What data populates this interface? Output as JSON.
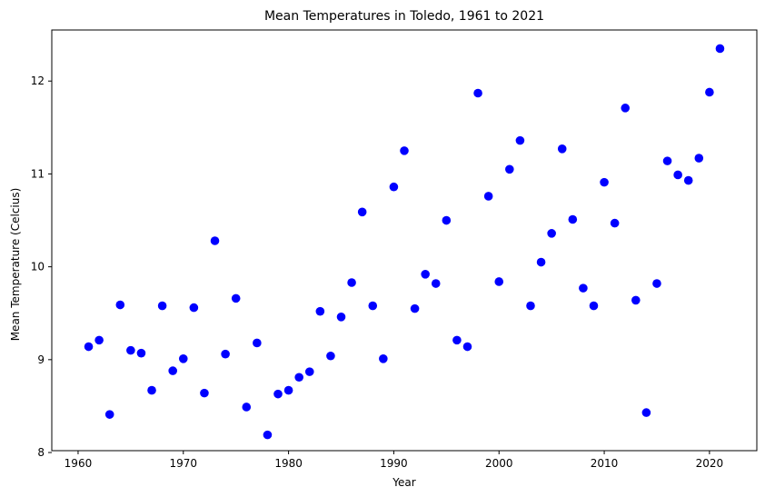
{
  "chart_data": {
    "type": "scatter",
    "title": "Mean Temperatures in Toledo, 1961 to 2021",
    "xlabel": "Year",
    "ylabel": "Mean Temperature (Celcius)",
    "xlim": [
      1957.5,
      2024.5
    ],
    "ylim": [
      8.02,
      12.55
    ],
    "xticks": [
      1960,
      1970,
      1980,
      1990,
      2000,
      2010,
      2020
    ],
    "yticks": [
      8,
      9,
      10,
      11,
      12
    ],
    "grid": false,
    "marker_color": "#0000ff",
    "series": [
      {
        "x": [
          1961,
          1962,
          1963,
          1964,
          1965,
          1966,
          1967,
          1968,
          1969,
          1970,
          1971,
          1972,
          1973,
          1974,
          1975,
          1976,
          1977,
          1978,
          1979,
          1980,
          1981,
          1982,
          1983,
          1984,
          1985,
          1986,
          1987,
          1988,
          1989,
          1990,
          1991,
          1992,
          1993,
          1994,
          1995,
          1996,
          1997,
          1998,
          1999,
          2000,
          2001,
          2002,
          2003,
          2004,
          2005,
          2006,
          2007,
          2008,
          2009,
          2010,
          2011,
          2012,
          2013,
          2014,
          2015,
          2016,
          2017,
          2018,
          2019,
          2020,
          2021
        ],
        "y": [
          9.14,
          9.21,
          8.41,
          9.59,
          9.1,
          9.07,
          8.67,
          9.58,
          8.88,
          9.01,
          9.56,
          8.64,
          10.28,
          9.06,
          9.66,
          8.49,
          9.18,
          8.19,
          8.63,
          8.67,
          8.81,
          8.87,
          9.52,
          9.04,
          9.46,
          9.83,
          10.59,
          9.58,
          9.01,
          10.86,
          11.25,
          9.55,
          9.92,
          9.82,
          10.5,
          9.21,
          9.14,
          11.87,
          10.76,
          9.84,
          11.05,
          11.36,
          9.58,
          10.05,
          10.36,
          11.27,
          10.51,
          9.77,
          9.58,
          10.91,
          10.47,
          11.71,
          9.64,
          8.43,
          9.82,
          11.14,
          10.99,
          10.93,
          11.17,
          11.88,
          12.35
        ]
      }
    ]
  }
}
